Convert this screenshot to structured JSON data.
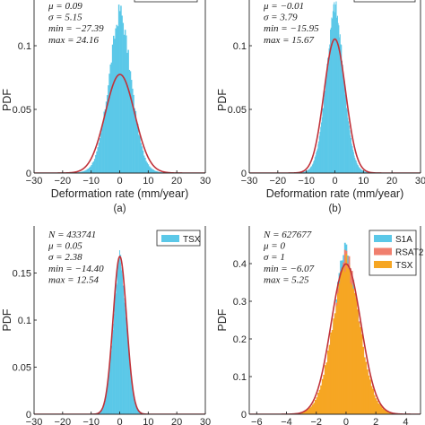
{
  "chart_data": [
    {
      "type": "histogram",
      "panel_label": "(a)",
      "xlabel": "Deformation rate (mm/year)",
      "ylabel": "PDF",
      "xlim": [
        -30,
        30
      ],
      "ylim": [
        0,
        0.15
      ],
      "xticks": [
        -30,
        -20,
        -10,
        0,
        10,
        20,
        30
      ],
      "yticks": [
        0,
        0.05,
        0.1
      ],
      "legend": [],
      "stats": [
        "μ = 0.09",
        "σ = 5.15",
        "min = −27.39",
        "max = 24.16"
      ],
      "series": [
        {
          "color": "#5BC8E8",
          "kind": "histogram",
          "mean": 0.09,
          "std": 4.05,
          "peak": 0.129,
          "xmin": -27.39,
          "xmax": 24.16
        },
        {
          "color": "#C0323A",
          "kind": "normal-fit",
          "mean": 0.09,
          "std": 5.15
        }
      ]
    },
    {
      "type": "histogram",
      "panel_label": "(b)",
      "xlabel": "Deformation rate (mm/year)",
      "ylabel": "PDF",
      "xlim": [
        -30,
        30
      ],
      "ylim": [
        0,
        0.15
      ],
      "xticks": [
        -30,
        -20,
        -10,
        0,
        10,
        20,
        30
      ],
      "yticks": [
        0,
        0.05,
        0.1
      ],
      "legend": [],
      "stats": [
        "μ = −0.01",
        "σ = 3.79",
        "min = −15.95",
        "max = 15.67"
      ],
      "series": [
        {
          "color": "#5BC8E8",
          "kind": "histogram",
          "mean": -0.01,
          "std": 3.2,
          "peak": 0.133,
          "xmin": -15.95,
          "xmax": 15.67
        },
        {
          "color": "#C0323A",
          "kind": "normal-fit",
          "mean": -0.01,
          "std": 3.79
        }
      ]
    },
    {
      "type": "histogram",
      "panel_label": "",
      "xlabel": "",
      "ylabel": "PDF",
      "xlim": [
        -30,
        30
      ],
      "ylim": [
        0,
        0.2
      ],
      "xticks": [
        -30,
        -20,
        -10,
        0,
        10,
        20,
        30
      ],
      "yticks": [
        0,
        0.05,
        0.1,
        0.15
      ],
      "legend": [
        {
          "label": "TSX",
          "color": "#5BC8E8"
        }
      ],
      "stats": [
        "N = 433741",
        "μ = 0.05",
        "σ = 2.38",
        "min = −14.40",
        "max = 12.54"
      ],
      "series": [
        {
          "name": "TSX",
          "color": "#5BC8E8",
          "kind": "histogram",
          "mean": 0.05,
          "std": 2.38,
          "peak": 0.17,
          "xmin": -14.4,
          "xmax": 12.54
        },
        {
          "color": "#C0323A",
          "kind": "normal-fit",
          "mean": 0.05,
          "std": 2.38
        }
      ]
    },
    {
      "type": "histogram",
      "panel_label": "",
      "xlabel": "",
      "ylabel": "PDF",
      "xlim": [
        -6.5,
        5
      ],
      "ylim": [
        0,
        0.5
      ],
      "xticks": [
        -6,
        -4,
        -2,
        0,
        2,
        4
      ],
      "yticks": [
        0,
        0.1,
        0.2,
        0.3,
        0.4
      ],
      "legend": [
        {
          "label": "S1A",
          "color": "#5BC8E8"
        },
        {
          "label": "RSAT2",
          "color": "#F07F6E"
        },
        {
          "label": "TSX",
          "color": "#F6A623"
        }
      ],
      "stats": [
        "N = 627677",
        "μ = 0",
        "σ = 1",
        "min = −6.07",
        "max = 5.25"
      ],
      "series": [
        {
          "name": "S1A",
          "color": "#5BC8E8",
          "kind": "histogram",
          "mean": 0,
          "std": 0.8,
          "peak": 0.46,
          "xmin": -6.07,
          "xmax": 5.25
        },
        {
          "name": "RSAT2",
          "color": "#F07F6E",
          "kind": "histogram",
          "mean": 0,
          "std": 0.88,
          "peak": 0.43,
          "xmin": -6.07,
          "xmax": 5.25
        },
        {
          "name": "TSX",
          "color": "#F6A623",
          "kind": "histogram",
          "mean": 0,
          "std": 0.95,
          "peak": 0.41,
          "xmin": -6.07,
          "xmax": 5.25
        },
        {
          "color": "#C0323A",
          "kind": "normal-fit",
          "mean": 0,
          "std": 1
        }
      ]
    }
  ]
}
